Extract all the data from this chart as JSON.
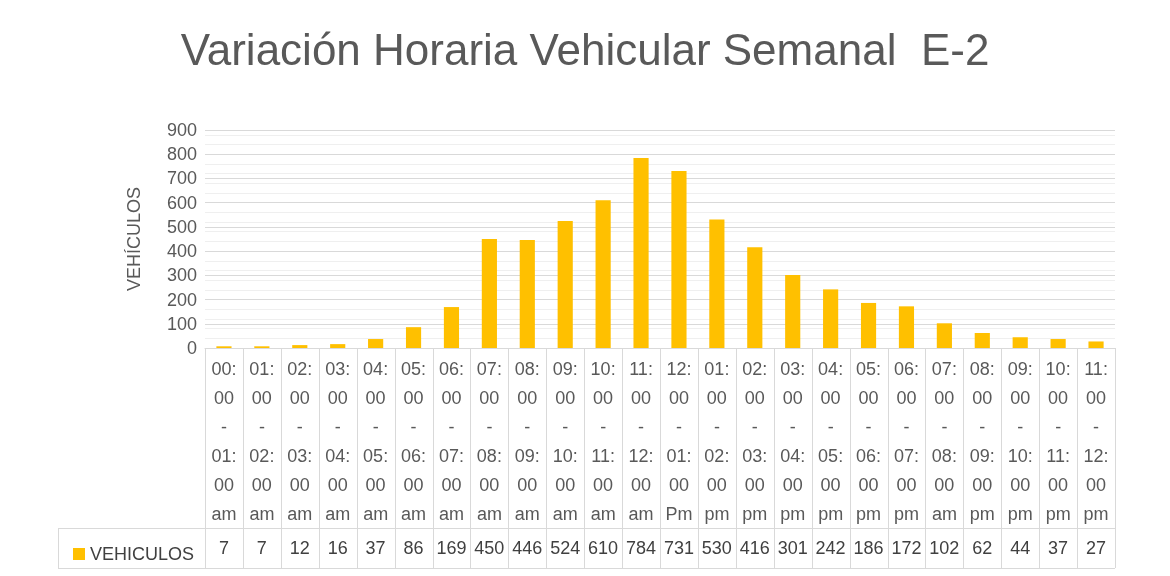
{
  "chart_data": {
    "type": "bar",
    "title": "Variación Horaria Vehicular Semanal  E-2",
    "ylabel": "VEHÍCULOS",
    "categories": [
      "00:00 - 01:00 am",
      "01:00 - 02:00 am",
      "02:00 - 03:00 am",
      "03:00 - 04:00 am",
      "04:00 - 05:00 am",
      "05:00 - 06:00 am",
      "06:00 - 07:00 am",
      "07:00 - 08:00 am",
      "08:00 - 09:00 am",
      "09:00 - 10:00 am",
      "10:00 - 11:00 am",
      "11:00 - 12:00 am",
      "12:00 - 01:00 Pm",
      "01:00 - 02:00 pm",
      "02:00 - 03:00 pm",
      "03:00 - 04:00 pm",
      "04:00 - 05:00 pm",
      "05:00 - 06:00 pm",
      "06:00 - 07:00 pm",
      "07:00 - 08:00 am",
      "08:00 - 09:00 pm",
      "09:00 - 10:00 pm",
      "10:00 - 11:00 pm",
      "11:00 - 12:00 pm"
    ],
    "series": [
      {
        "name": "VEHICULOS",
        "color": "#ffc000",
        "values": [
          7,
          7,
          12,
          16,
          37,
          86,
          169,
          450,
          446,
          524,
          610,
          784,
          731,
          530,
          416,
          301,
          242,
          186,
          172,
          102,
          62,
          44,
          37,
          27
        ]
      }
    ],
    "ylim": [
      0,
      900
    ],
    "yticks": [
      0,
      100,
      200,
      300,
      400,
      500,
      600,
      700,
      800,
      900
    ],
    "grid": true,
    "legend": "bottom",
    "data_labels": true
  }
}
